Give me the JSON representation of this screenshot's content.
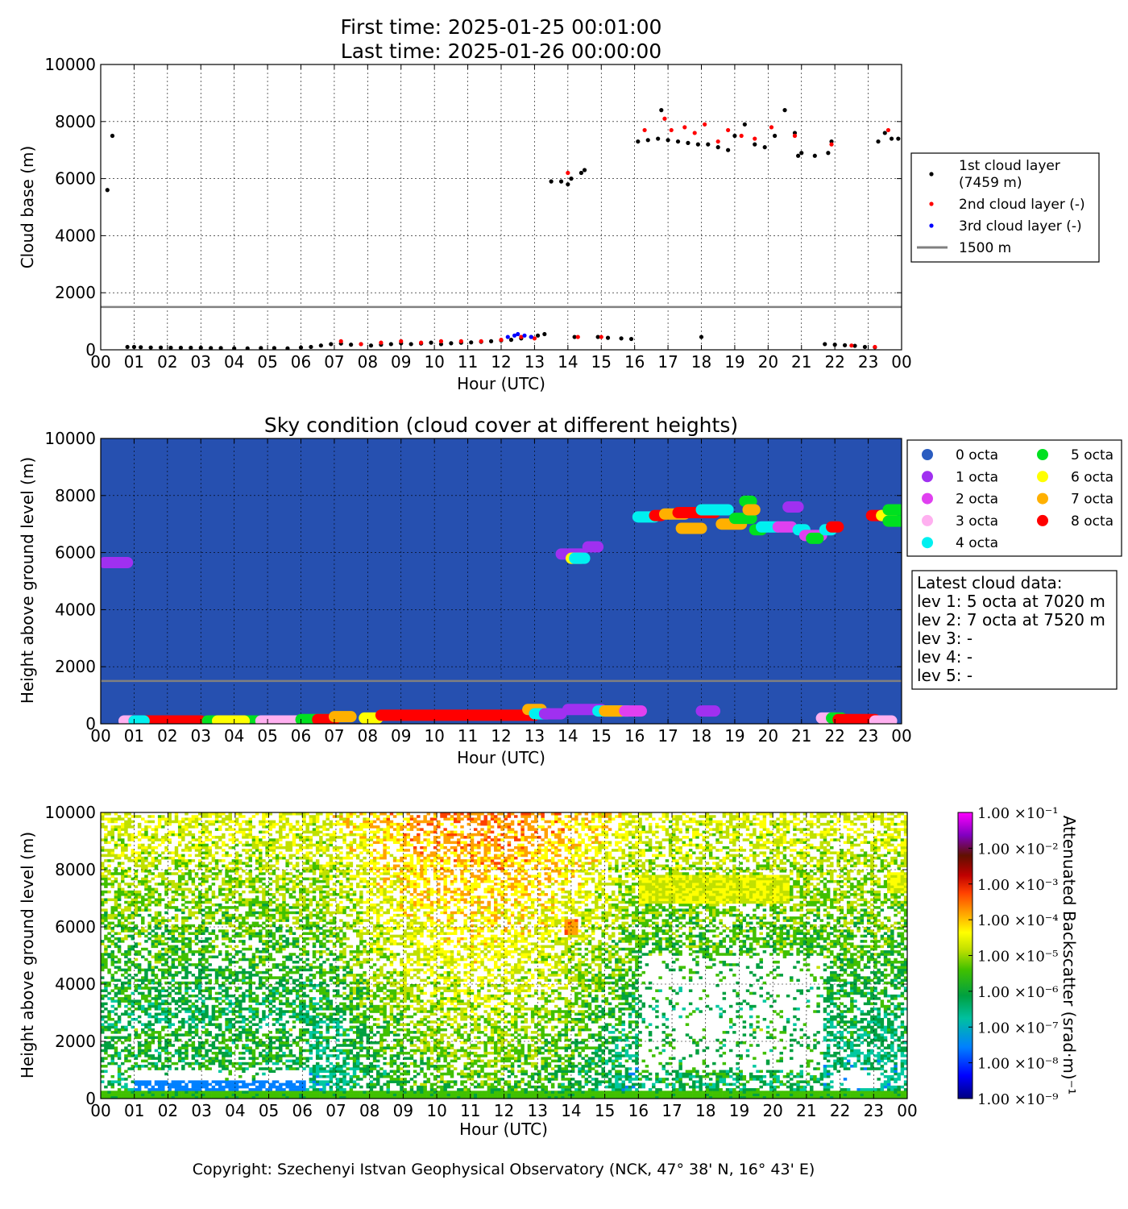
{
  "header": {
    "first_time": "First time: 2025-01-25 00:01:00",
    "last_time": "Last time: 2025-01-26 00:00:00"
  },
  "hours": [
    "00",
    "01",
    "02",
    "03",
    "04",
    "05",
    "06",
    "07",
    "08",
    "09",
    "10",
    "11",
    "12",
    "13",
    "14",
    "15",
    "16",
    "17",
    "18",
    "19",
    "20",
    "21",
    "22",
    "23",
    "00"
  ],
  "y_ticks": [
    "0",
    "2000",
    "4000",
    "6000",
    "8000",
    "10000"
  ],
  "xlabel": "Hour (UTC)",
  "copyright": "Copyright: Szechenyi Istvan Geophysical Observatory (NCK, 47° 38' N, 16° 43' E)",
  "chart_data": [
    {
      "type": "scatter",
      "ylabel": "Cloud base (m)",
      "xlabel": "Hour (UTC)",
      "xlim": [
        0,
        24
      ],
      "ylim": [
        0,
        10000
      ],
      "grid": true,
      "legend_position": "right",
      "reference_line": {
        "value": 1500,
        "label": "1500 m",
        "color": "#808080"
      },
      "series": [
        {
          "name": "1st cloud layer (7459 m)",
          "legend_line1": "1st cloud layer",
          "legend_line2": "(7459 m)",
          "color": "#000000",
          "points": [
            [
              0.2,
              5600
            ],
            [
              0.35,
              7500
            ],
            [
              0.8,
              100
            ],
            [
              1.0,
              100
            ],
            [
              1.2,
              90
            ],
            [
              1.5,
              80
            ],
            [
              1.8,
              80
            ],
            [
              2.1,
              70
            ],
            [
              2.4,
              70
            ],
            [
              2.7,
              70
            ],
            [
              3.0,
              70
            ],
            [
              3.3,
              60
            ],
            [
              3.6,
              60
            ],
            [
              4.0,
              50
            ],
            [
              4.4,
              50
            ],
            [
              4.8,
              60
            ],
            [
              5.2,
              60
            ],
            [
              5.6,
              50
            ],
            [
              6.0,
              80
            ],
            [
              6.3,
              100
            ],
            [
              6.6,
              150
            ],
            [
              6.9,
              200
            ],
            [
              7.2,
              220
            ],
            [
              7.5,
              180
            ],
            [
              7.8,
              200
            ],
            [
              8.1,
              150
            ],
            [
              8.4,
              180
            ],
            [
              8.7,
              200
            ],
            [
              9.0,
              230
            ],
            [
              9.3,
              200
            ],
            [
              9.6,
              220
            ],
            [
              9.9,
              250
            ],
            [
              10.2,
              200
            ],
            [
              10.5,
              230
            ],
            [
              10.8,
              250
            ],
            [
              11.1,
              260
            ],
            [
              11.4,
              280
            ],
            [
              11.7,
              300
            ],
            [
              12.0,
              330
            ],
            [
              12.3,
              350
            ],
            [
              12.6,
              400
            ],
            [
              12.9,
              450
            ],
            [
              13.1,
              500
            ],
            [
              13.3,
              550
            ],
            [
              13.5,
              5900
            ],
            [
              13.8,
              5900
            ],
            [
              14.0,
              5800
            ],
            [
              14.1,
              6000
            ],
            [
              14.4,
              6200
            ],
            [
              14.5,
              6300
            ],
            [
              14.2,
              450
            ],
            [
              14.9,
              450
            ],
            [
              15.2,
              420
            ],
            [
              15.6,
              400
            ],
            [
              15.9,
              380
            ],
            [
              16.1,
              7300
            ],
            [
              16.4,
              7350
            ],
            [
              16.7,
              7400
            ],
            [
              16.8,
              8400
            ],
            [
              17.0,
              7350
            ],
            [
              17.3,
              7300
            ],
            [
              17.6,
              7250
            ],
            [
              17.9,
              7200
            ],
            [
              18.0,
              450
            ],
            [
              18.2,
              7200
            ],
            [
              18.5,
              7100
            ],
            [
              18.8,
              7000
            ],
            [
              19.0,
              7500
            ],
            [
              19.3,
              7900
            ],
            [
              19.6,
              7200
            ],
            [
              19.9,
              7100
            ],
            [
              20.2,
              7500
            ],
            [
              20.5,
              8400
            ],
            [
              20.8,
              7600
            ],
            [
              20.9,
              6800
            ],
            [
              21.0,
              6900
            ],
            [
              21.4,
              6800
            ],
            [
              21.8,
              6900
            ],
            [
              21.9,
              7300
            ],
            [
              21.7,
              200
            ],
            [
              22.0,
              180
            ],
            [
              22.3,
              160
            ],
            [
              22.6,
              140
            ],
            [
              22.9,
              100
            ],
            [
              23.2,
              90
            ],
            [
              23.3,
              7300
            ],
            [
              23.5,
              7600
            ],
            [
              23.7,
              7400
            ],
            [
              23.9,
              7400
            ]
          ]
        },
        {
          "name": "2nd cloud layer (-)",
          "color": "#ff0000",
          "points": [
            [
              7.2,
              300
            ],
            [
              7.8,
              200
            ],
            [
              8.4,
              250
            ],
            [
              9.0,
              300
            ],
            [
              9.6,
              250
            ],
            [
              10.2,
              300
            ],
            [
              10.8,
              300
            ],
            [
              11.4,
              300
            ],
            [
              12.0,
              350
            ],
            [
              12.6,
              450
            ],
            [
              13.0,
              400
            ],
            [
              14.0,
              6200
            ],
            [
              14.3,
              450
            ],
            [
              15.0,
              450
            ],
            [
              16.3,
              7700
            ],
            [
              16.9,
              8100
            ],
            [
              17.1,
              7700
            ],
            [
              17.5,
              7800
            ],
            [
              17.8,
              7600
            ],
            [
              18.1,
              7900
            ],
            [
              18.5,
              7300
            ],
            [
              18.8,
              7700
            ],
            [
              19.2,
              7500
            ],
            [
              19.6,
              7400
            ],
            [
              20.1,
              7800
            ],
            [
              20.8,
              7500
            ],
            [
              21.9,
              7200
            ],
            [
              22.5,
              150
            ],
            [
              23.2,
              100
            ],
            [
              23.6,
              7700
            ]
          ]
        },
        {
          "name": "3rd cloud layer (-)",
          "color": "#0000ff",
          "points": [
            [
              12.2,
              450
            ],
            [
              12.4,
              500
            ],
            [
              12.5,
              550
            ],
            [
              12.7,
              500
            ],
            [
              12.9,
              450
            ]
          ]
        }
      ]
    },
    {
      "type": "scatter",
      "title": "Sky condition (cloud cover at different heights)",
      "ylabel": "Height above ground level (m)",
      "xlabel": "Hour (UTC)",
      "xlim": [
        0,
        24
      ],
      "ylim": [
        0,
        10000
      ],
      "background": "#2650b0",
      "reference_line": {
        "value": 1500,
        "color": "#808080"
      },
      "legend_position": "right",
      "categories": [
        "0 octa",
        "1 octa",
        "2 octa",
        "3 octa",
        "4 octa",
        "5 octa",
        "6 octa",
        "7 octa",
        "8 octa"
      ],
      "category_colors": [
        "#2a5cc0",
        "#a030f0",
        "#e040f0",
        "#ffb0f0",
        "#00f0f0",
        "#00e020",
        "#ffff00",
        "#ffb000",
        "#ff0000"
      ],
      "segments": [
        {
          "octa": 1,
          "x0": 0.1,
          "x1": 0.8,
          "y": 5650
        },
        {
          "octa": 3,
          "x0": 0.7,
          "x1": 1.0,
          "y": 100
        },
        {
          "octa": 8,
          "x0": 1.0,
          "x1": 3.0,
          "y": 100
        },
        {
          "octa": 4,
          "x0": 1.0,
          "x1": 1.3,
          "y": 100
        },
        {
          "octa": 5,
          "x0": 3.2,
          "x1": 4.7,
          "y": 100
        },
        {
          "octa": 6,
          "x0": 3.5,
          "x1": 4.3,
          "y": 100
        },
        {
          "octa": 3,
          "x0": 4.8,
          "x1": 6.0,
          "y": 100
        },
        {
          "octa": 5,
          "x0": 6.0,
          "x1": 6.8,
          "y": 150
        },
        {
          "octa": 8,
          "x0": 6.5,
          "x1": 7.0,
          "y": 150
        },
        {
          "octa": 7,
          "x0": 7.0,
          "x1": 7.5,
          "y": 250
        },
        {
          "octa": 6,
          "x0": 7.9,
          "x1": 8.3,
          "y": 200
        },
        {
          "octa": 8,
          "x0": 8.4,
          "x1": 13.0,
          "y": 300
        },
        {
          "octa": 7,
          "x0": 12.8,
          "x1": 13.2,
          "y": 500
        },
        {
          "octa": 4,
          "x0": 13.0,
          "x1": 13.4,
          "y": 350
        },
        {
          "octa": 1,
          "x0": 13.3,
          "x1": 13.8,
          "y": 350
        },
        {
          "octa": 1,
          "x0": 13.8,
          "x1": 14.4,
          "y": 5950
        },
        {
          "octa": 6,
          "x0": 14.1,
          "x1": 14.4,
          "y": 5800
        },
        {
          "octa": 4,
          "x0": 14.2,
          "x1": 14.5,
          "y": 5800
        },
        {
          "octa": 1,
          "x0": 14.6,
          "x1": 14.9,
          "y": 6200
        },
        {
          "octa": 1,
          "x0": 14.0,
          "x1": 15.0,
          "y": 500
        },
        {
          "octa": 4,
          "x0": 14.9,
          "x1": 15.8,
          "y": 450
        },
        {
          "octa": 7,
          "x0": 15.1,
          "x1": 15.6,
          "y": 450
        },
        {
          "octa": 2,
          "x0": 15.7,
          "x1": 16.2,
          "y": 450
        },
        {
          "octa": 4,
          "x0": 16.1,
          "x1": 16.6,
          "y": 7250
        },
        {
          "octa": 8,
          "x0": 16.6,
          "x1": 16.8,
          "y": 7300
        },
        {
          "octa": 7,
          "x0": 16.9,
          "x1": 17.5,
          "y": 7350
        },
        {
          "octa": 8,
          "x0": 17.3,
          "x1": 18.4,
          "y": 7400
        },
        {
          "octa": 7,
          "x0": 17.4,
          "x1": 18.0,
          "y": 6850
        },
        {
          "octa": 4,
          "x0": 18.0,
          "x1": 18.8,
          "y": 7500
        },
        {
          "octa": 7,
          "x0": 18.6,
          "x1": 19.2,
          "y": 7000
        },
        {
          "octa": 5,
          "x0": 19.0,
          "x1": 19.5,
          "y": 7200
        },
        {
          "octa": 5,
          "x0": 19.3,
          "x1": 19.5,
          "y": 7800
        },
        {
          "octa": 7,
          "x0": 19.4,
          "x1": 19.6,
          "y": 7500
        },
        {
          "octa": 5,
          "x0": 19.6,
          "x1": 19.8,
          "y": 6800
        },
        {
          "octa": 4,
          "x0": 19.8,
          "x1": 20.3,
          "y": 6900
        },
        {
          "octa": 2,
          "x0": 20.3,
          "x1": 20.7,
          "y": 6900
        },
        {
          "octa": 1,
          "x0": 20.6,
          "x1": 20.9,
          "y": 7600
        },
        {
          "octa": 4,
          "x0": 20.9,
          "x1": 21.1,
          "y": 6800
        },
        {
          "octa": 2,
          "x0": 21.1,
          "x1": 21.6,
          "y": 6600
        },
        {
          "octa": 5,
          "x0": 21.3,
          "x1": 21.5,
          "y": 6500
        },
        {
          "octa": 4,
          "x0": 21.7,
          "x1": 21.9,
          "y": 6800
        },
        {
          "octa": 8,
          "x0": 21.9,
          "x1": 22.1,
          "y": 6900
        },
        {
          "octa": 1,
          "x0": 18.0,
          "x1": 18.4,
          "y": 450
        },
        {
          "octa": 3,
          "x0": 21.6,
          "x1": 22.0,
          "y": 200
        },
        {
          "octa": 5,
          "x0": 21.9,
          "x1": 22.2,
          "y": 200
        },
        {
          "octa": 8,
          "x0": 22.1,
          "x1": 23.2,
          "y": 150
        },
        {
          "octa": 3,
          "x0": 23.2,
          "x1": 23.7,
          "y": 100
        },
        {
          "octa": 8,
          "x0": 23.1,
          "x1": 23.4,
          "y": 7300
        },
        {
          "octa": 6,
          "x0": 23.4,
          "x1": 23.7,
          "y": 7300
        },
        {
          "octa": 5,
          "x0": 23.6,
          "x1": 24.0,
          "y": 7500
        },
        {
          "octa": 5,
          "x0": 23.6,
          "x1": 24.0,
          "y": 7100
        }
      ],
      "latest_cloud_data": {
        "title": "Latest cloud data:",
        "lines": [
          "lev 1: 5 octa at 7020 m",
          "lev 2: 7 octa at 7520 m",
          "lev 3: -",
          "lev 4: -",
          "lev 5: -"
        ]
      }
    },
    {
      "type": "heatmap",
      "ylabel": "Height above ground level (m)",
      "xlabel": "Hour (UTC)",
      "xlim": [
        0,
        24
      ],
      "ylim": [
        0,
        10000
      ],
      "colorbar_label": "Attenuated Backscatter (srad·m)⁻¹",
      "colorbar_scale": "log",
      "colorbar_range": [
        1e-09,
        0.1
      ],
      "colorbar_ticks": [
        "1.00 ×10⁻¹",
        "1.00 ×10⁻²",
        "1.00 ×10⁻³",
        "1.00 ×10⁻⁴",
        "1.00 ×10⁻⁵",
        "1.00 ×10⁻⁶",
        "1.00 ×10⁻⁷",
        "1.00 ×10⁻⁸",
        "1.00 ×10⁻⁹"
      ],
      "colormap": [
        "#000080",
        "#0000ff",
        "#0080ff",
        "#00c8a0",
        "#00a040",
        "#40c000",
        "#c0e000",
        "#ffff00",
        "#ffa000",
        "#ff4000",
        "#c00000",
        "#601000",
        "#a000ff",
        "#ff00ff"
      ],
      "features": [
        {
          "desc": "surface layer",
          "x0": 0,
          "x1": 24,
          "y0": 0,
          "y1": 300,
          "level": -6
        },
        {
          "desc": "cloud band",
          "x0": 16.0,
          "x1": 20.5,
          "y0": 6800,
          "y1": 7800,
          "level": -5
        },
        {
          "desc": "cloud patch",
          "x0": 13.8,
          "x1": 14.2,
          "y0": 5700,
          "y1": 6300,
          "level": -4
        },
        {
          "desc": "cloud patch",
          "x0": 23.4,
          "x1": 24,
          "y0": 7200,
          "y1": 7900,
          "level": -5
        }
      ]
    }
  ]
}
